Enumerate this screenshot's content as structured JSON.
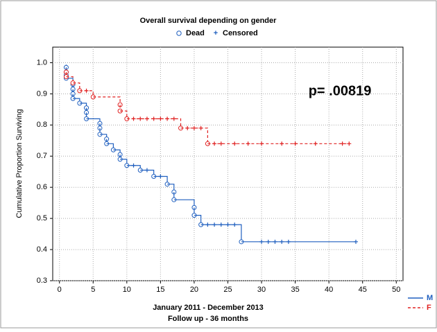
{
  "chart_data": {
    "type": "survival",
    "title": "Overall survival depending on gender",
    "legend_markers": [
      "Dead",
      "Censored"
    ],
    "y_label": "Cumulative Proportion Surviving",
    "x_label": [
      "January 2011 - December 2013",
      "Follow up - 36 months"
    ],
    "annotation": "p= .00819",
    "xlim": [
      -1,
      51
    ],
    "ylim": [
      0.3,
      1.05
    ],
    "xticks": [
      0,
      5,
      10,
      15,
      20,
      25,
      30,
      35,
      40,
      45,
      50
    ],
    "yticks": [
      0.3,
      0.4,
      0.5,
      0.6,
      0.7,
      0.8,
      0.9,
      {
        "value": 1,
        "label": "1.0"
      }
    ],
    "grid": true,
    "legend": "bottom-right",
    "series": [
      {
        "name": "M",
        "color": "#1f5fbf",
        "dash": false,
        "x": [
          1,
          1,
          1,
          1,
          2,
          2,
          2,
          2,
          3,
          4,
          4,
          4,
          6,
          6,
          6,
          7,
          7,
          8,
          9,
          9,
          10,
          12,
          14,
          16,
          17,
          17,
          20,
          20,
          21,
          27
        ],
        "values": [
          0.985,
          0.97,
          0.96,
          0.95,
          0.93,
          0.915,
          0.9,
          0.885,
          0.87,
          0.855,
          0.84,
          0.82,
          0.805,
          0.79,
          0.77,
          0.755,
          0.74,
          0.72,
          0.705,
          0.69,
          0.67,
          0.655,
          0.635,
          0.61,
          0.585,
          0.56,
          0.535,
          0.51,
          0.48,
          0.425
        ],
        "censored": {
          "x": [
            11,
            13,
            15,
            22,
            23,
            24,
            25,
            26,
            30,
            31,
            32,
            33,
            34,
            44
          ],
          "values": [
            0.67,
            0.655,
            0.635,
            0.48,
            0.48,
            0.48,
            0.48,
            0.48,
            0.425,
            0.425,
            0.425,
            0.425,
            0.425,
            0.425
          ]
        }
      },
      {
        "name": "F",
        "color": "#e02020",
        "dash": true,
        "x": [
          1,
          1,
          2,
          3,
          5,
          9,
          9,
          10,
          18,
          22
        ],
        "values": [
          0.97,
          0.955,
          0.935,
          0.91,
          0.89,
          0.865,
          0.845,
          0.82,
          0.79,
          0.74
        ],
        "censored": {
          "x": [
            4,
            11,
            12,
            13,
            14,
            15,
            16,
            17,
            19,
            20,
            21,
            23,
            24,
            26,
            28,
            30,
            33,
            35,
            38,
            42,
            43
          ],
          "values": [
            0.91,
            0.82,
            0.82,
            0.82,
            0.82,
            0.82,
            0.82,
            0.82,
            0.79,
            0.79,
            0.79,
            0.74,
            0.74,
            0.74,
            0.74,
            0.74,
            0.74,
            0.74,
            0.74,
            0.74,
            0.74
          ]
        }
      }
    ]
  }
}
